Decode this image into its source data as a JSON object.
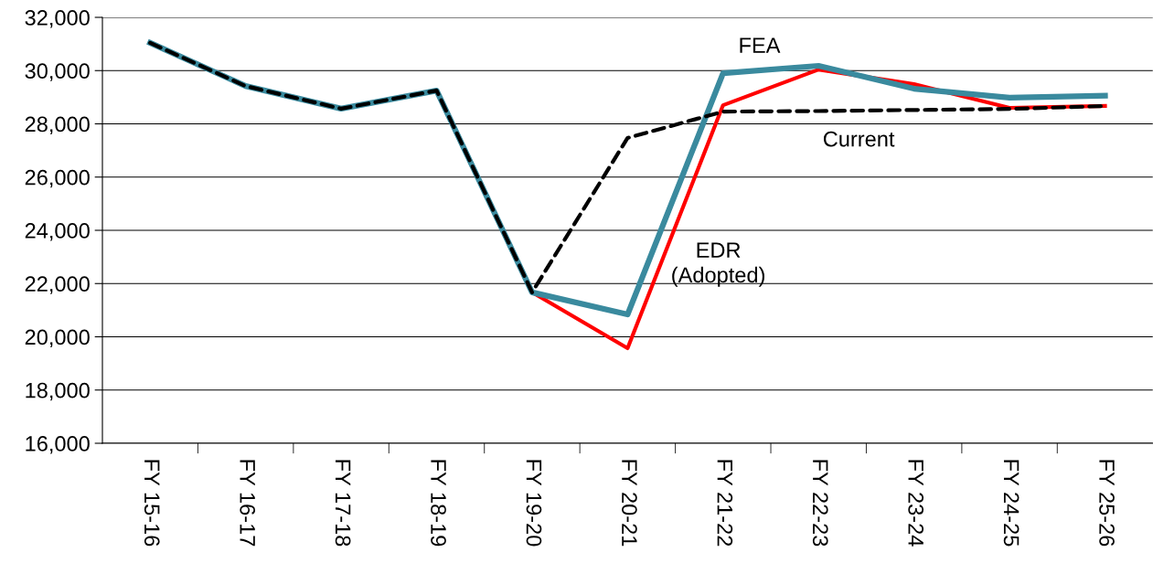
{
  "chart_data": {
    "type": "line",
    "categories": [
      "FY 15-16",
      "FY 16-17",
      "FY 17-18",
      "FY 18-19",
      "FY 19-20",
      "FY 20-21",
      "FY 21-22",
      "FY 22-23",
      "FY 23-24",
      "FY 24-25",
      "FY 25-26"
    ],
    "series": [
      {
        "name": "EDR\n(Adopted)",
        "color": "#ff0000",
        "line_style": "solid",
        "values": [
          null,
          null,
          null,
          null,
          21670,
          19570,
          28700,
          30040,
          29490,
          28600,
          28670
        ]
      },
      {
        "name": "FEA",
        "color": "#3a8a9e",
        "line_style": "solid",
        "values": [
          31040,
          29420,
          28570,
          29250,
          21670,
          20840,
          29900,
          30180,
          29320,
          28980,
          29060
        ]
      },
      {
        "name": "Current",
        "color": "#000000",
        "line_style": "dashed",
        "values": [
          31040,
          29420,
          28570,
          29250,
          21670,
          27470,
          28460,
          28480,
          28520,
          28560,
          28670
        ]
      }
    ],
    "ylim": [
      16000,
      32000
    ],
    "yticks": [
      {
        "value": 16000,
        "label": "16,000"
      },
      {
        "value": 18000,
        "label": "18,000"
      },
      {
        "value": 20000,
        "label": "20,000"
      },
      {
        "value": 22000,
        "label": "22,000"
      },
      {
        "value": 24000,
        "label": "24,000"
      },
      {
        "value": 26000,
        "label": "26,000"
      },
      {
        "value": 28000,
        "label": "28,000"
      },
      {
        "value": 30000,
        "label": "30,000"
      },
      {
        "value": 32000,
        "label": "32,000"
      }
    ],
    "grid": "y",
    "legend": false,
    "marker": "none"
  }
}
